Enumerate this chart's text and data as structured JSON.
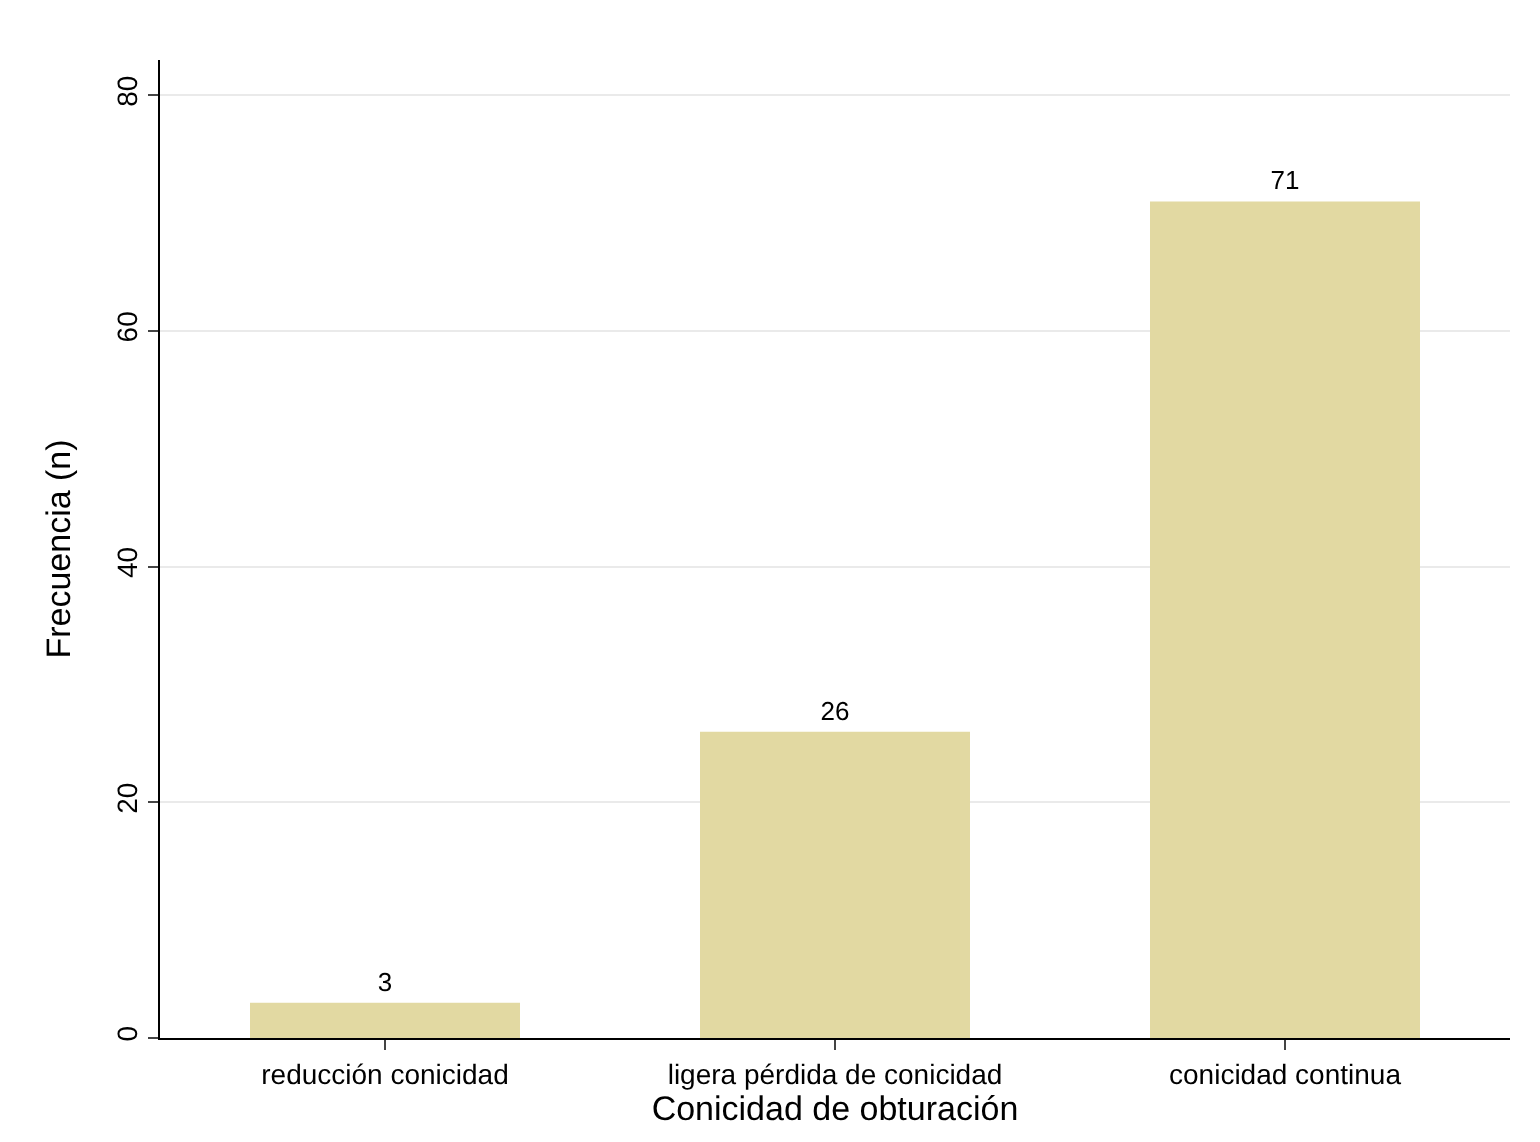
{
  "chart_data": {
    "type": "bar",
    "xlabel": "Conicidad de obturación",
    "ylabel": "Frecuencia (n)",
    "categories": [
      "reducción conicidad",
      "ligera pérdida de conicidad",
      "conicidad continua"
    ],
    "values": [
      3,
      26,
      71
    ],
    "color": "#e2d9a2",
    "ylim": [
      0,
      83
    ],
    "yticks": [
      0,
      20,
      40,
      60,
      80
    ],
    "grid": "y",
    "data_labels": true,
    "legend": false
  }
}
